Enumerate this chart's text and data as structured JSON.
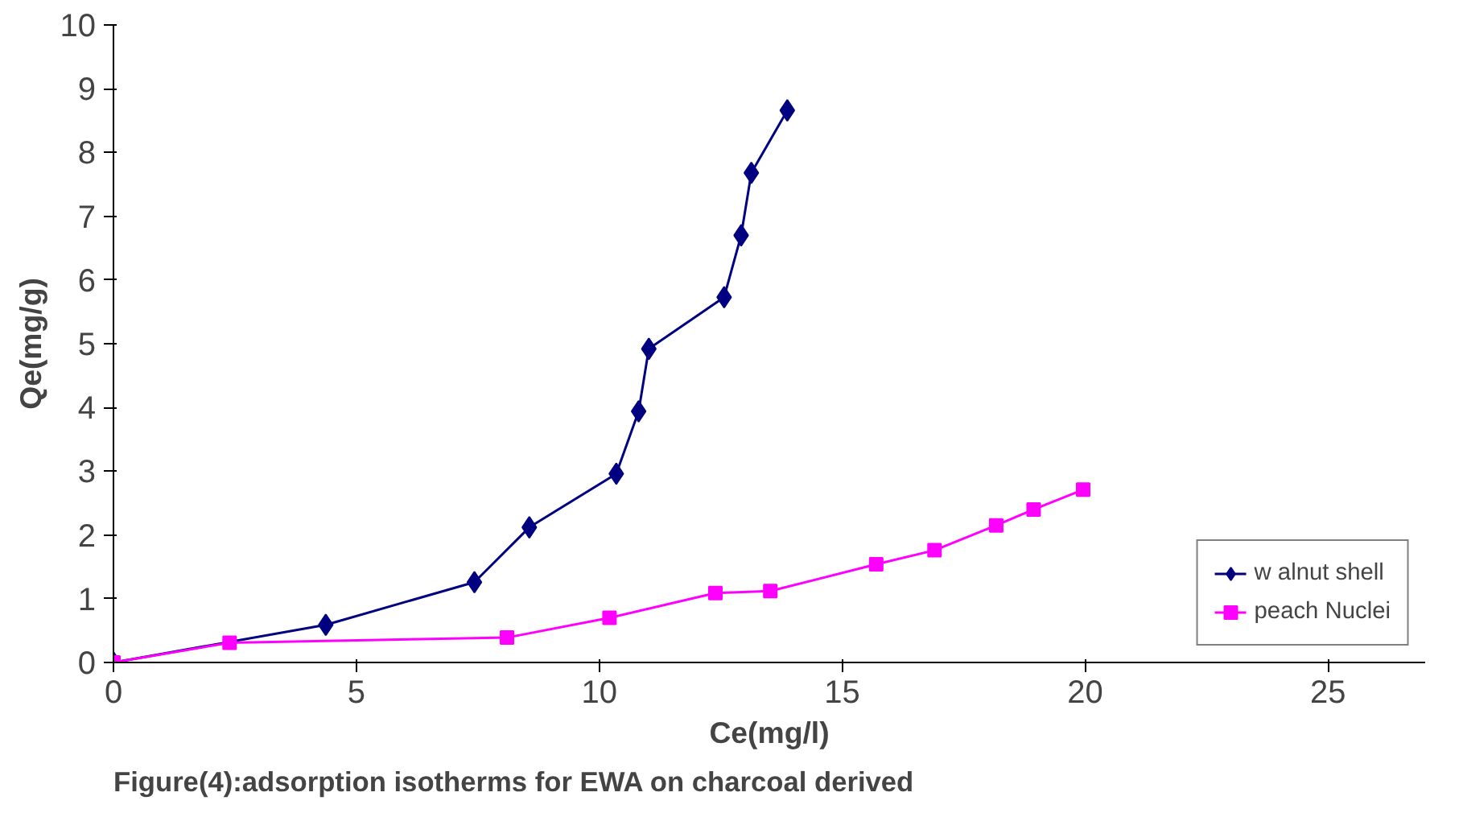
{
  "chart_data": {
    "type": "line",
    "xlabel": "Ce(mg/l)",
    "ylabel": "Qe(mg/g)",
    "xlim": [
      0,
      27
    ],
    "xticks": [
      0,
      5,
      10,
      15,
      20,
      25
    ],
    "ylim": [
      0,
      10
    ],
    "yticks": [
      0,
      1,
      2,
      3,
      4,
      5,
      6,
      7,
      8,
      9,
      10
    ],
    "grid": false,
    "legend": "bottom right",
    "series": [
      {
        "name": "w alnut shell",
        "color": "#000080",
        "marker": "diamond",
        "x": [
          0,
          4.37,
          7.43,
          8.56,
          10.35,
          10.81,
          11.02,
          12.57,
          12.92,
          13.13,
          13.87
        ],
        "values": [
          0,
          0.59,
          1.26,
          2.12,
          2.96,
          3.94,
          4.92,
          5.73,
          6.7,
          7.68,
          8.66
        ]
      },
      {
        "name": "peach Nuclei",
        "color": "#ff00ff",
        "marker": "square",
        "x": [
          0,
          2.39,
          8.1,
          10.21,
          12.39,
          13.52,
          15.7,
          16.9,
          18.17,
          18.94,
          19.96
        ],
        "values": [
          0,
          0.31,
          0.39,
          0.7,
          1.09,
          1.12,
          1.54,
          1.76,
          2.15,
          2.4,
          2.71
        ]
      }
    ],
    "annotations": [
      "Figure(4):adsorption isotherms for EWA on charcoal derived"
    ]
  }
}
